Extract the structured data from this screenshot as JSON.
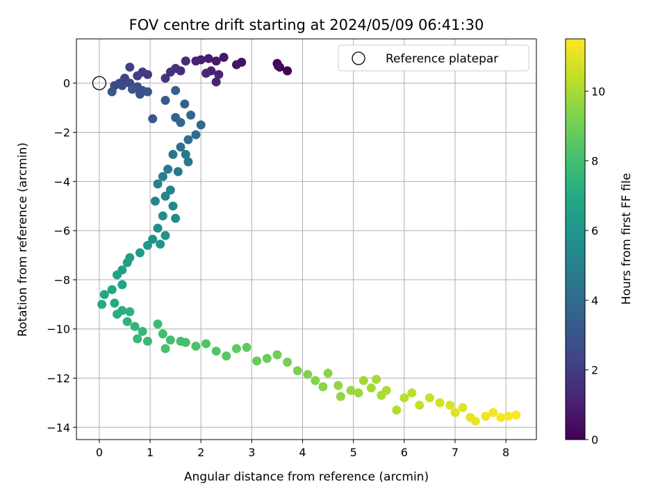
{
  "chart_data": {
    "type": "scatter",
    "title": "FOV centre drift starting at 2024/05/09 06:41:30",
    "xlabel": "Angular distance from reference (arcmin)",
    "ylabel": "Rotation from reference (arcmin)",
    "xlim": [
      -0.45,
      8.6
    ],
    "ylim": [
      -14.5,
      1.8
    ],
    "xticks": [
      0,
      1,
      2,
      3,
      4,
      5,
      6,
      7,
      8
    ],
    "yticks": [
      0,
      -2,
      -4,
      -6,
      -8,
      -10,
      -12,
      -14
    ],
    "grid": true,
    "legend": {
      "position": "top-right",
      "entries": [
        "Reference platepar"
      ]
    },
    "reference_point": {
      "x": 0,
      "y": 0
    },
    "colorbar": {
      "label": "Hours from first FF file",
      "range": [
        0,
        11.5
      ],
      "ticks": [
        0,
        2,
        4,
        6,
        8,
        10
      ],
      "colormap": "viridis"
    },
    "track": [
      [
        3.7,
        0.5,
        0.0
      ],
      [
        3.55,
        0.65,
        0.1
      ],
      [
        3.5,
        0.8,
        0.2
      ],
      [
        3.52,
        0.7,
        0.3
      ],
      [
        2.8,
        0.85,
        0.5
      ],
      [
        2.7,
        0.75,
        0.6
      ],
      [
        2.45,
        1.05,
        0.7
      ],
      [
        2.3,
        0.9,
        0.8
      ],
      [
        2.15,
        1.0,
        0.9
      ],
      [
        2.0,
        0.95,
        1.0
      ],
      [
        1.9,
        0.9,
        1.05
      ],
      [
        2.2,
        0.5,
        1.1
      ],
      [
        2.35,
        0.35,
        1.15
      ],
      [
        2.3,
        0.05,
        1.2
      ],
      [
        2.1,
        0.4,
        1.3
      ],
      [
        1.7,
        0.9,
        1.35
      ],
      [
        1.6,
        0.5,
        1.45
      ],
      [
        1.5,
        0.6,
        1.55
      ],
      [
        1.4,
        0.45,
        1.65
      ],
      [
        1.3,
        0.2,
        1.75
      ],
      [
        0.95,
        0.35,
        1.9
      ],
      [
        0.85,
        0.45,
        2.0
      ],
      [
        0.75,
        0.3,
        2.1
      ],
      [
        0.6,
        0.65,
        2.2
      ],
      [
        0.5,
        0.2,
        2.3
      ],
      [
        0.4,
        0.0,
        2.4
      ],
      [
        0.3,
        -0.1,
        2.5
      ],
      [
        0.45,
        -0.1,
        2.55
      ],
      [
        0.6,
        0.0,
        2.6
      ],
      [
        0.75,
        -0.15,
        2.7
      ],
      [
        0.85,
        -0.3,
        2.8
      ],
      [
        0.95,
        -0.35,
        2.9
      ],
      [
        0.8,
        -0.45,
        3.0
      ],
      [
        0.65,
        -0.25,
        3.1
      ],
      [
        0.25,
        -0.35,
        3.15
      ],
      [
        1.05,
        -1.45,
        3.2
      ],
      [
        1.3,
        -0.7,
        3.3
      ],
      [
        1.5,
        -0.3,
        3.4
      ],
      [
        1.68,
        -0.85,
        3.55
      ],
      [
        1.5,
        -1.4,
        3.65
      ],
      [
        1.6,
        -1.6,
        3.75
      ],
      [
        1.8,
        -1.3,
        3.85
      ],
      [
        2.0,
        -1.7,
        3.95
      ],
      [
        1.9,
        -2.1,
        4.05
      ],
      [
        1.75,
        -2.3,
        4.15
      ],
      [
        1.6,
        -2.6,
        4.25
      ],
      [
        1.45,
        -2.9,
        4.35
      ],
      [
        1.7,
        -2.9,
        4.45
      ],
      [
        1.75,
        -3.2,
        4.55
      ],
      [
        1.55,
        -3.6,
        4.65
      ],
      [
        1.35,
        -3.5,
        4.75
      ],
      [
        1.25,
        -3.8,
        4.85
      ],
      [
        1.15,
        -4.1,
        4.95
      ],
      [
        1.4,
        -4.35,
        5.05
      ],
      [
        1.3,
        -4.6,
        5.15
      ],
      [
        1.1,
        -4.8,
        5.25
      ],
      [
        1.45,
        -5.0,
        5.35
      ],
      [
        1.5,
        -5.5,
        5.45
      ],
      [
        1.25,
        -5.4,
        5.55
      ],
      [
        1.15,
        -5.9,
        5.65
      ],
      [
        1.3,
        -6.2,
        5.75
      ],
      [
        1.05,
        -6.35,
        5.85
      ],
      [
        1.2,
        -6.55,
        5.95
      ],
      [
        0.95,
        -6.6,
        6.05
      ],
      [
        0.8,
        -6.9,
        6.15
      ],
      [
        0.6,
        -7.1,
        6.25
      ],
      [
        0.55,
        -7.3,
        6.35
      ],
      [
        0.45,
        -7.6,
        6.45
      ],
      [
        0.35,
        -7.8,
        6.55
      ],
      [
        0.45,
        -8.2,
        6.65
      ],
      [
        0.25,
        -8.4,
        6.75
      ],
      [
        0.1,
        -8.6,
        6.85
      ],
      [
        0.05,
        -9.0,
        6.95
      ],
      [
        0.3,
        -8.95,
        7.05
      ],
      [
        0.45,
        -9.25,
        7.15
      ],
      [
        0.35,
        -9.4,
        7.2
      ],
      [
        0.6,
        -9.3,
        7.3
      ],
      [
        0.55,
        -9.7,
        7.4
      ],
      [
        0.7,
        -9.9,
        7.5
      ],
      [
        0.85,
        -10.1,
        7.6
      ],
      [
        0.75,
        -10.4,
        7.65
      ],
      [
        0.95,
        -10.5,
        7.75
      ],
      [
        1.15,
        -9.8,
        7.85
      ],
      [
        1.25,
        -10.2,
        7.9
      ],
      [
        1.4,
        -10.45,
        8.0
      ],
      [
        1.6,
        -10.5,
        8.05
      ],
      [
        1.7,
        -10.55,
        8.1
      ],
      [
        1.3,
        -10.8,
        8.15
      ],
      [
        1.9,
        -10.7,
        8.2
      ],
      [
        2.1,
        -10.6,
        8.3
      ],
      [
        2.3,
        -10.9,
        8.4
      ],
      [
        2.5,
        -11.1,
        8.5
      ],
      [
        2.7,
        -10.8,
        8.6
      ],
      [
        2.9,
        -10.75,
        8.7
      ],
      [
        3.1,
        -11.3,
        8.8
      ],
      [
        3.3,
        -11.2,
        8.9
      ],
      [
        3.5,
        -11.05,
        9.0
      ],
      [
        3.7,
        -11.35,
        9.1
      ],
      [
        3.9,
        -11.7,
        9.2
      ],
      [
        4.1,
        -11.85,
        9.3
      ],
      [
        4.25,
        -12.1,
        9.35
      ],
      [
        4.4,
        -12.35,
        9.45
      ],
      [
        4.5,
        -11.8,
        9.5
      ],
      [
        4.7,
        -12.3,
        9.6
      ],
      [
        4.75,
        -12.75,
        9.65
      ],
      [
        4.95,
        -12.5,
        9.75
      ],
      [
        5.1,
        -12.6,
        9.8
      ],
      [
        5.2,
        -12.1,
        9.85
      ],
      [
        5.35,
        -12.4,
        9.9
      ],
      [
        5.45,
        -12.05,
        9.95
      ],
      [
        5.55,
        -12.7,
        10.0
      ],
      [
        5.65,
        -12.5,
        10.05
      ],
      [
        5.85,
        -13.3,
        10.15
      ],
      [
        6.0,
        -12.8,
        10.25
      ],
      [
        6.15,
        -12.6,
        10.35
      ],
      [
        6.3,
        -13.1,
        10.45
      ],
      [
        6.5,
        -12.8,
        10.6
      ],
      [
        6.7,
        -13.0,
        10.75
      ],
      [
        6.9,
        -13.1,
        10.85
      ],
      [
        7.0,
        -13.4,
        10.95
      ],
      [
        7.15,
        -13.2,
        11.0
      ],
      [
        7.3,
        -13.6,
        11.1
      ],
      [
        7.4,
        -13.75,
        11.15
      ],
      [
        7.6,
        -13.55,
        11.25
      ],
      [
        7.75,
        -13.4,
        11.3
      ],
      [
        7.9,
        -13.6,
        11.35
      ],
      [
        8.05,
        -13.55,
        11.4
      ],
      [
        8.2,
        -13.5,
        11.45
      ]
    ]
  }
}
